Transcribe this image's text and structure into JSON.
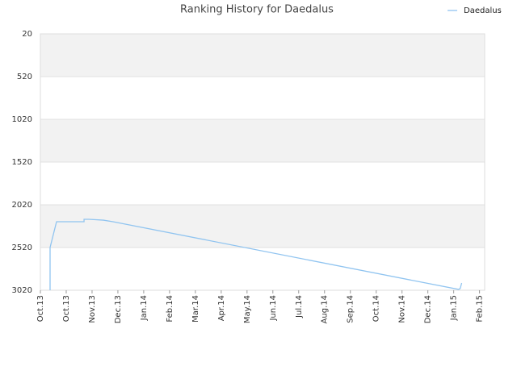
{
  "chart_data": {
    "type": "line",
    "title": "Ranking History for Daedalus",
    "x": [
      0.375,
      0.375,
      0.625,
      1.69,
      1.69,
      1.875,
      2.44,
      2.81,
      16.19,
      16.25,
      16.31
    ],
    "series": [
      {
        "name": "Daedalus",
        "color": "#90c4f0",
        "values": [
          3020,
          2520,
          2218,
          2218,
          2190,
          2190,
          2200,
          2218,
          3010,
          3000,
          2935
        ]
      }
    ],
    "xlim": [
      0,
      17.2
    ],
    "xticks": [
      {
        "value": 0,
        "label": "Oct.13"
      },
      {
        "value": 1,
        "label": "Oct.13"
      },
      {
        "value": 2,
        "label": "Nov.13"
      },
      {
        "value": 3,
        "label": "Dec.13"
      },
      {
        "value": 4,
        "label": "Jan.14"
      },
      {
        "value": 5,
        "label": "Feb.14"
      },
      {
        "value": 6,
        "label": "Mar.14"
      },
      {
        "value": 7,
        "label": "Apr.14"
      },
      {
        "value": 8,
        "label": "May.14"
      },
      {
        "value": 9,
        "label": "Jun.14"
      },
      {
        "value": 10,
        "label": "Jul.14"
      },
      {
        "value": 11,
        "label": "Aug.14"
      },
      {
        "value": 12,
        "label": "Sep.14"
      },
      {
        "value": 13,
        "label": "Oct.14"
      },
      {
        "value": 14,
        "label": "Nov.14"
      },
      {
        "value": 15,
        "label": "Dec.14"
      },
      {
        "value": 16,
        "label": "Jan.15"
      },
      {
        "value": 17,
        "label": "Feb.15"
      }
    ],
    "ylim": [
      3020,
      20
    ],
    "yticks": [
      20,
      520,
      1020,
      1520,
      2020,
      2520,
      3020
    ],
    "grid": true,
    "band_color": "#f2f2f2",
    "legend": "top-right"
  }
}
